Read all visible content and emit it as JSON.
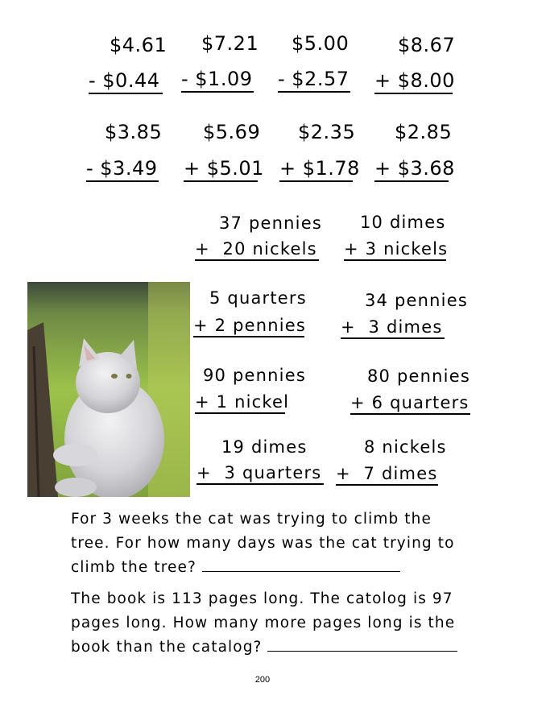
{
  "money_problems": [
    {
      "top": "$4.61",
      "bottom": "- $0.44"
    },
    {
      "top": "$7.21",
      "bottom": "- $1.09"
    },
    {
      "top": "$5.00",
      "bottom": "- $2.57"
    },
    {
      "top": "$8.67",
      "bottom": "+ $8.00"
    },
    {
      "top": "$3.85",
      "bottom": "- $3.49"
    },
    {
      "top": "$5.69",
      "bottom": "+ $5.01"
    },
    {
      "top": "$2.35",
      "bottom": "+ $1.78"
    },
    {
      "top": "$2.85",
      "bottom": "+ $3.68"
    }
  ],
  "coin_problems": [
    {
      "top": "37 pennies",
      "bottom": "+  20 nickels"
    },
    {
      "top": "10 dimes",
      "bottom": "+ 3 nickels"
    },
    {
      "top": "5 quarters",
      "bottom": "+ 2 pennies"
    },
    {
      "top": "34 pennies",
      "bottom": "+  3 dimes"
    },
    {
      "top": "90 pennies",
      "bottom": "+ 1 nickel"
    },
    {
      "top": "80 pennies",
      "bottom": "+ 6 quarters"
    },
    {
      "top": "19 dimes",
      "bottom": "+  3 quarters"
    },
    {
      "top": "8 nickels",
      "bottom": "+  7 dimes"
    }
  ],
  "image": {
    "subject": "cat-photo",
    "colors": {
      "grass": "#8fb83a",
      "cat": "#d9d9dc",
      "tree": "#4a3f33"
    }
  },
  "word_problems": [
    {
      "lines": [
        "For 3 weeks the cat was trying to climb the",
        "tree. For how many days was the cat trying to",
        "climb the tree? "
      ]
    },
    {
      "lines": [
        "The book is 113 pages long. The catolog is 97",
        "pages long. How many more pages long is the",
        "book than the catalog? "
      ]
    }
  ],
  "page_number": "200"
}
